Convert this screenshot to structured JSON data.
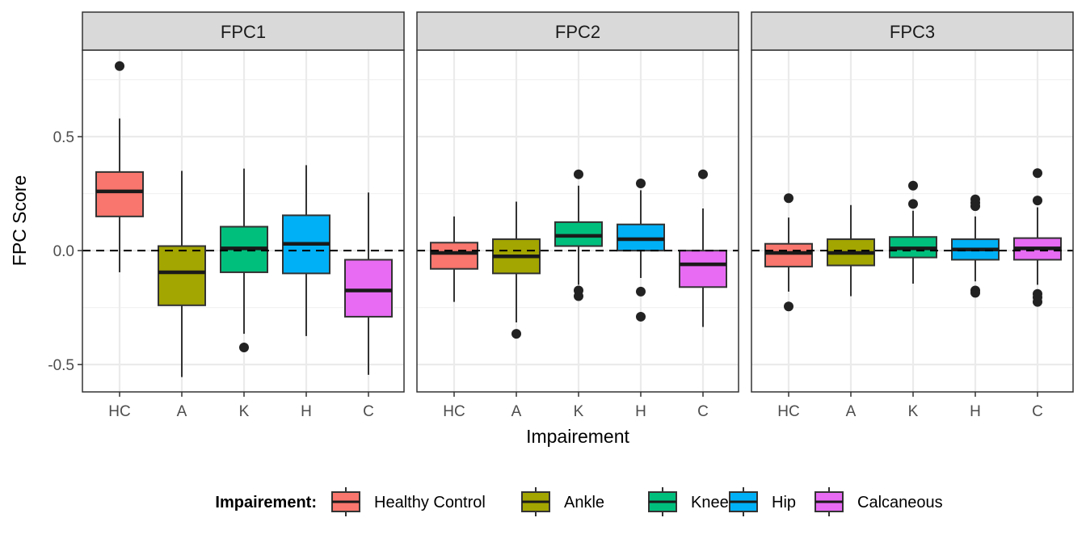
{
  "chart_data": {
    "type": "boxplot",
    "xlabel": "Impairement",
    "ylabel": "FPC Score",
    "ylim": [
      -0.62,
      0.88
    ],
    "yticks": [
      -0.5,
      0.0,
      0.5
    ],
    "ytick_labels": [
      "-0.5",
      "0.0",
      "0.5"
    ],
    "reference_line": 0.0,
    "grid": true,
    "categories": [
      "HC",
      "A",
      "K",
      "H",
      "C"
    ],
    "legend": {
      "title": "Impairement:",
      "position": "bottom",
      "entries": [
        {
          "label": "Healthy Control",
          "color": "#F8766D"
        },
        {
          "label": "Ankle",
          "color": "#A3A500"
        },
        {
          "label": "Knee",
          "color": "#00BF7D"
        },
        {
          "label": "Hip",
          "color": "#00B0F6"
        },
        {
          "label": "Calcaneous",
          "color": "#E76BF3"
        }
      ]
    },
    "panels": [
      {
        "title": "FPC1",
        "boxes": [
          {
            "category": "HC",
            "whisker_low": -0.095,
            "q1": 0.15,
            "median": 0.26,
            "q3": 0.345,
            "whisker_high": 0.58,
            "outliers": [
              0.81
            ]
          },
          {
            "category": "A",
            "whisker_low": -0.555,
            "q1": -0.24,
            "median": -0.095,
            "q3": 0.02,
            "whisker_high": 0.35,
            "outliers": []
          },
          {
            "category": "K",
            "whisker_low": -0.365,
            "q1": -0.095,
            "median": 0.01,
            "q3": 0.105,
            "whisker_high": 0.36,
            "outliers": [
              -0.425
            ]
          },
          {
            "category": "H",
            "whisker_low": -0.375,
            "q1": -0.1,
            "median": 0.03,
            "q3": 0.155,
            "whisker_high": 0.375,
            "outliers": []
          },
          {
            "category": "C",
            "whisker_low": -0.545,
            "q1": -0.29,
            "median": -0.175,
            "q3": -0.04,
            "whisker_high": 0.255,
            "outliers": []
          }
        ]
      },
      {
        "title": "FPC2",
        "boxes": [
          {
            "category": "HC",
            "whisker_low": -0.225,
            "q1": -0.08,
            "median": -0.01,
            "q3": 0.035,
            "whisker_high": 0.15,
            "outliers": []
          },
          {
            "category": "A",
            "whisker_low": -0.315,
            "q1": -0.1,
            "median": -0.025,
            "q3": 0.05,
            "whisker_high": 0.215,
            "outliers": [
              -0.365
            ]
          },
          {
            "category": "K",
            "whisker_low": -0.15,
            "q1": 0.02,
            "median": 0.065,
            "q3": 0.125,
            "whisker_high": 0.285,
            "outliers": [
              0.335,
              -0.175,
              -0.2
            ]
          },
          {
            "category": "H",
            "whisker_low": -0.12,
            "q1": 0.0,
            "median": 0.05,
            "q3": 0.115,
            "whisker_high": 0.265,
            "outliers": [
              0.295,
              -0.18,
              -0.29
            ]
          },
          {
            "category": "C",
            "whisker_low": -0.335,
            "q1": -0.16,
            "median": -0.06,
            "q3": 0.0,
            "whisker_high": 0.185,
            "outliers": [
              0.335
            ]
          }
        ]
      },
      {
        "title": "FPC3",
        "boxes": [
          {
            "category": "HC",
            "whisker_low": -0.18,
            "q1": -0.07,
            "median": -0.01,
            "q3": 0.03,
            "whisker_high": 0.145,
            "outliers": [
              0.23,
              -0.245
            ]
          },
          {
            "category": "A",
            "whisker_low": -0.2,
            "q1": -0.065,
            "median": -0.01,
            "q3": 0.05,
            "whisker_high": 0.2,
            "outliers": []
          },
          {
            "category": "K",
            "whisker_low": -0.145,
            "q1": -0.03,
            "median": 0.01,
            "q3": 0.06,
            "whisker_high": 0.175,
            "outliers": [
              0.285,
              0.205
            ]
          },
          {
            "category": "H",
            "whisker_low": -0.135,
            "q1": -0.04,
            "median": 0.005,
            "q3": 0.05,
            "whisker_high": 0.15,
            "outliers": [
              0.225,
              0.21,
              0.195,
              -0.175,
              -0.185
            ]
          },
          {
            "category": "C",
            "whisker_low": -0.15,
            "q1": -0.04,
            "median": 0.01,
            "q3": 0.055,
            "whisker_high": 0.19,
            "outliers": [
              0.34,
              0.22,
              -0.19,
              -0.205,
              -0.225
            ]
          }
        ]
      }
    ]
  }
}
